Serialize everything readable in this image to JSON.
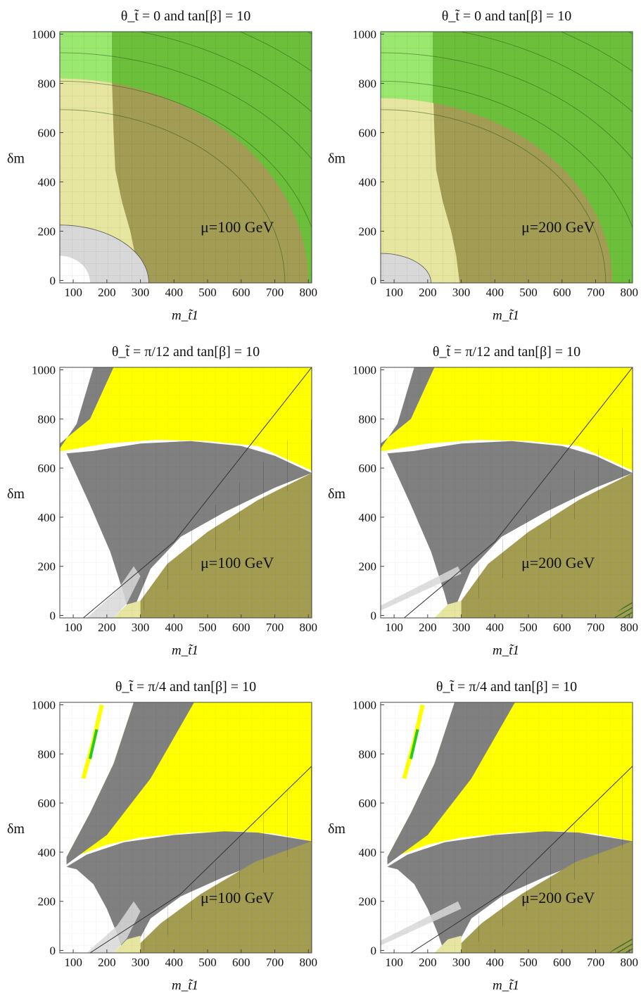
{
  "chart_data": [
    {
      "type": "area",
      "title": "θ_t̃ = 0 and tan[β] = 10",
      "theta": "0",
      "annotation": "μ=100 GeV",
      "xlabel": "m_t̃1",
      "ylabel": "δm",
      "xlim": [
        60,
        810
      ],
      "ylim": [
        -10,
        1010
      ],
      "xticks": [
        100,
        200,
        300,
        400,
        500,
        600,
        700,
        800
      ],
      "yticks": [
        0,
        200,
        400,
        600,
        800,
        1000
      ],
      "variant": "A",
      "mu": 100
    },
    {
      "type": "area",
      "title": "θ_t̃ = 0 and tan[β] = 10",
      "theta": "0",
      "annotation": "μ=200 GeV",
      "xlabel": "m_t̃1",
      "ylabel": "δm",
      "xlim": [
        60,
        810
      ],
      "ylim": [
        -10,
        1010
      ],
      "xticks": [
        100,
        200,
        300,
        400,
        500,
        600,
        700,
        800
      ],
      "yticks": [
        0,
        200,
        400,
        600,
        800,
        1000
      ],
      "variant": "A",
      "mu": 200
    },
    {
      "type": "area",
      "title": "θ_t̃ = π/12 and tan[β] = 10",
      "theta": "π/12",
      "annotation": "μ=100 GeV",
      "xlabel": "m_t̃1",
      "ylabel": "δm",
      "xlim": [
        60,
        810
      ],
      "ylim": [
        -10,
        1010
      ],
      "xticks": [
        100,
        200,
        300,
        400,
        500,
        600,
        700,
        800
      ],
      "yticks": [
        0,
        200,
        400,
        600,
        800,
        1000
      ],
      "variant": "B",
      "mu": 100
    },
    {
      "type": "area",
      "title": "θ_t̃ = π/12 and tan[β] = 10",
      "theta": "π/12",
      "annotation": "μ=200 GeV",
      "xlabel": "m_t̃1",
      "ylabel": "δm",
      "xlim": [
        60,
        810
      ],
      "ylim": [
        -10,
        1010
      ],
      "xticks": [
        100,
        200,
        300,
        400,
        500,
        600,
        700,
        800
      ],
      "yticks": [
        0,
        200,
        400,
        600,
        800,
        1000
      ],
      "variant": "B",
      "mu": 200
    },
    {
      "type": "area",
      "title": "θ_t̃ = π/4 and tan[β] = 10",
      "theta": "π/4",
      "annotation": "μ=100 GeV",
      "xlabel": "m_t̃1",
      "ylabel": "δm",
      "xlim": [
        60,
        810
      ],
      "ylim": [
        -10,
        1010
      ],
      "xticks": [
        100,
        200,
        300,
        400,
        500,
        600,
        700,
        800
      ],
      "yticks": [
        0,
        200,
        400,
        600,
        800,
        1000
      ],
      "variant": "C",
      "mu": 100
    },
    {
      "type": "area",
      "title": "θ_t̃ = π/4 and tan[β] = 10",
      "theta": "π/4",
      "annotation": "μ=200 GeV",
      "xlabel": "m_t̃1",
      "ylabel": "δm",
      "xlim": [
        60,
        810
      ],
      "ylim": [
        -10,
        1010
      ],
      "xticks": [
        100,
        200,
        300,
        400,
        500,
        600,
        700,
        800
      ],
      "yticks": [
        0,
        200,
        400,
        600,
        800,
        1000
      ],
      "variant": "C",
      "mu": 200
    }
  ],
  "colors": {
    "yellow": "#ffff00",
    "paleYellow": "#e6e6a0",
    "gray": "#808080",
    "lightGray": "#d8d8d8",
    "olive": "#a39c55",
    "green": "#6cbf3a",
    "lightGreen": "#9be870",
    "axis": "#444444"
  }
}
